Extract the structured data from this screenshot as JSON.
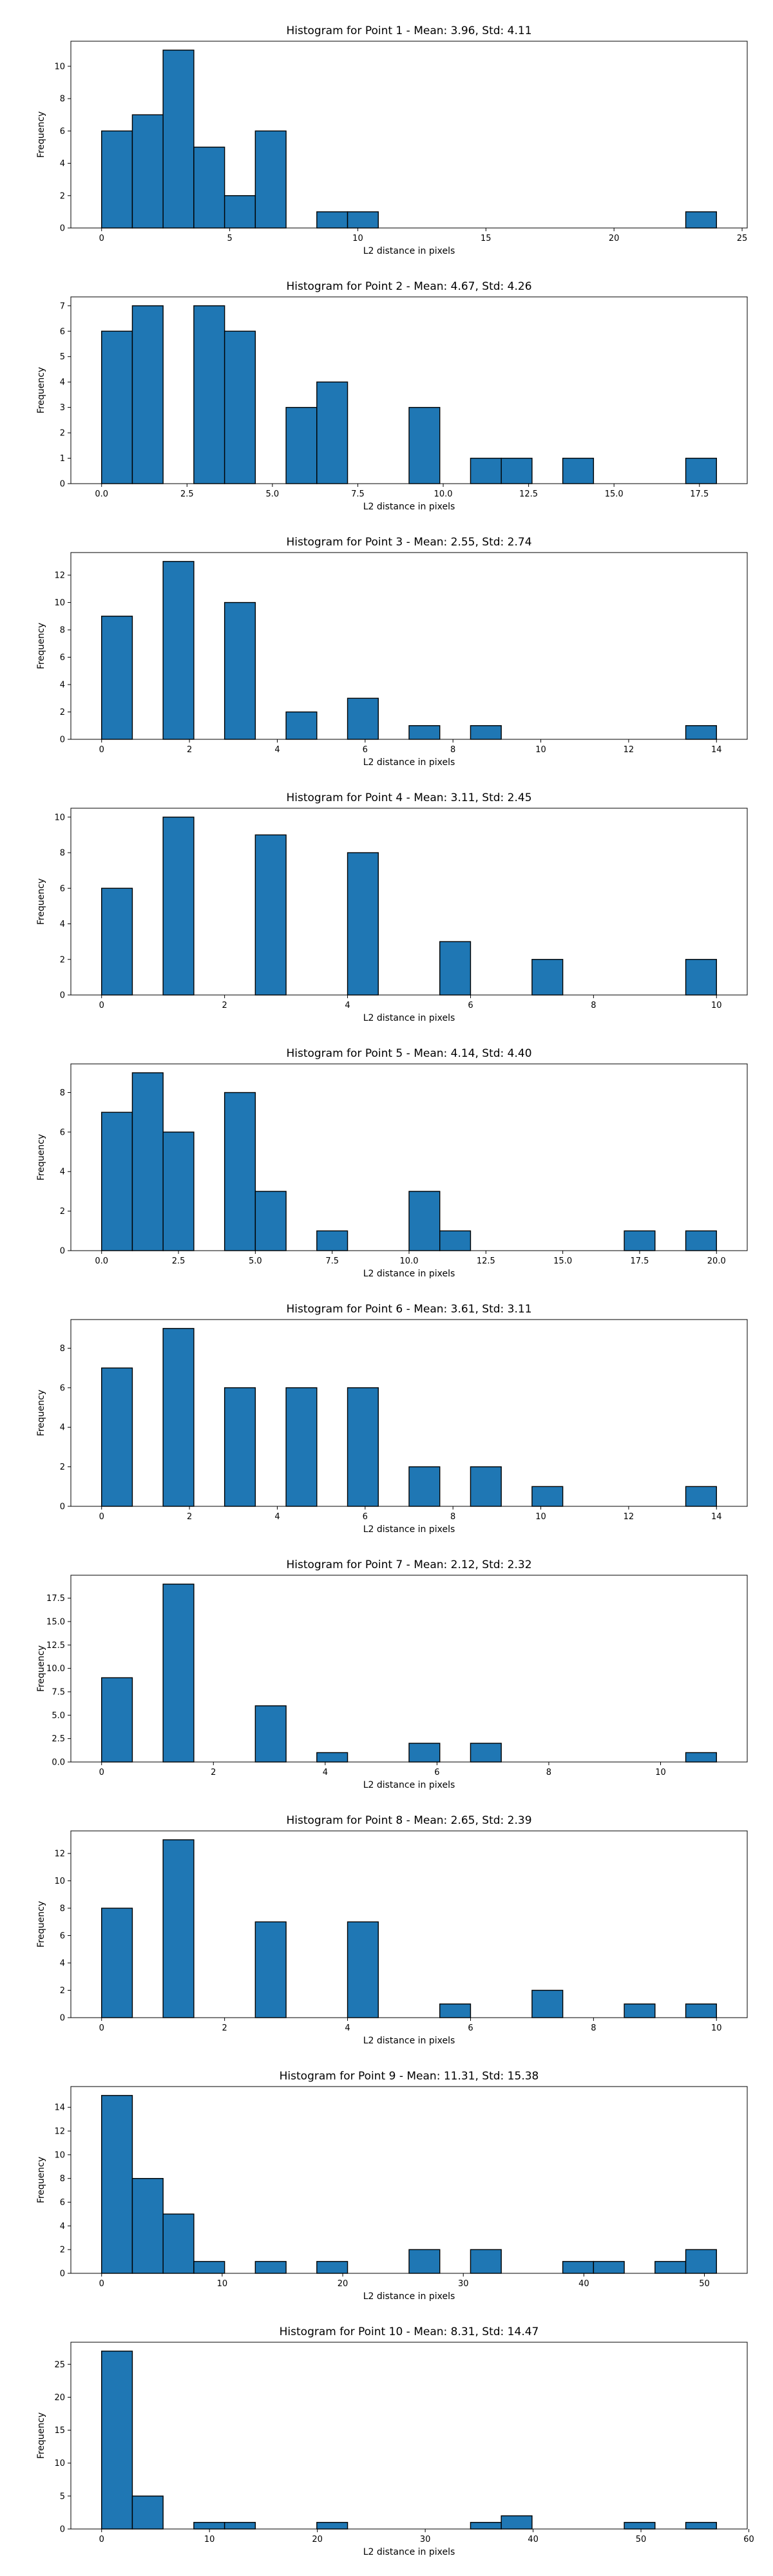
{
  "chart_data": [
    {
      "type": "bar",
      "title": "Histogram for Point 1 - Mean: 3.96, Std: 4.11",
      "xlabel": "L2 distance in pixels",
      "ylabel": "Frequency",
      "bins": [
        [
          0.0,
          1.2
        ],
        [
          1.2,
          2.4
        ],
        [
          2.4,
          3.6
        ],
        [
          3.6,
          4.8
        ],
        [
          4.8,
          6.0
        ],
        [
          6.0,
          7.2
        ],
        [
          8.4,
          9.6
        ],
        [
          9.6,
          10.8
        ],
        [
          22.8,
          24.0
        ]
      ],
      "counts": [
        6,
        7,
        11,
        5,
        2,
        6,
        1,
        1,
        1
      ],
      "xlim": [
        -1.2,
        25.2
      ],
      "ylim": [
        0,
        11.55
      ],
      "xticks": [
        0,
        5,
        10,
        15,
        20,
        25
      ],
      "xtick_labels": [
        "0",
        "5",
        "10",
        "15",
        "20",
        "25"
      ],
      "yticks": [
        0,
        2,
        4,
        6,
        8,
        10
      ],
      "ytick_labels": [
        "0",
        "2",
        "4",
        "6",
        "8",
        "10"
      ],
      "bar_color": "#1f77b4",
      "edge_color": "#000000"
    },
    {
      "type": "bar",
      "title": "Histogram for Point 2 - Mean: 4.67, Std: 4.26",
      "xlabel": "L2 distance in pixels",
      "ylabel": "Frequency",
      "bins": [
        [
          0.0,
          0.9
        ],
        [
          0.9,
          1.8
        ],
        [
          2.7,
          3.6
        ],
        [
          3.6,
          4.5
        ],
        [
          5.4,
          6.3
        ],
        [
          6.3,
          7.2
        ],
        [
          9.0,
          9.9
        ],
        [
          10.8,
          11.7
        ],
        [
          11.7,
          12.6
        ],
        [
          13.5,
          14.4
        ],
        [
          17.1,
          18.0
        ]
      ],
      "counts": [
        6,
        7,
        7,
        6,
        3,
        4,
        3,
        1,
        1,
        1,
        1
      ],
      "xlim": [
        -0.9,
        18.9
      ],
      "ylim": [
        0,
        7.35
      ],
      "xticks": [
        0,
        2.5,
        5,
        7.5,
        10,
        12.5,
        15,
        17.5
      ],
      "xtick_labels": [
        "0.0",
        "2.5",
        "5.0",
        "7.5",
        "10.0",
        "12.5",
        "15.0",
        "17.5"
      ],
      "yticks": [
        0,
        1,
        2,
        3,
        4,
        5,
        6,
        7
      ],
      "ytick_labels": [
        "0",
        "1",
        "2",
        "3",
        "4",
        "5",
        "6",
        "7"
      ],
      "bar_color": "#1f77b4",
      "edge_color": "#000000"
    },
    {
      "type": "bar",
      "title": "Histogram for Point 3 - Mean: 2.55, Std: 2.74",
      "xlabel": "L2 distance in pixels",
      "ylabel": "Frequency",
      "bins": [
        [
          0.0,
          0.7
        ],
        [
          1.4,
          2.1
        ],
        [
          2.8,
          3.5
        ],
        [
          4.2,
          4.9
        ],
        [
          5.6,
          6.3
        ],
        [
          7.0,
          7.7
        ],
        [
          8.4,
          9.1
        ],
        [
          13.3,
          14.0
        ]
      ],
      "counts": [
        9,
        13,
        10,
        2,
        3,
        1,
        1,
        1
      ],
      "xlim": [
        -0.7,
        14.7
      ],
      "ylim": [
        0,
        13.65
      ],
      "xticks": [
        0,
        2,
        4,
        6,
        8,
        10,
        12,
        14
      ],
      "xtick_labels": [
        "0",
        "2",
        "4",
        "6",
        "8",
        "10",
        "12",
        "14"
      ],
      "yticks": [
        0,
        2,
        4,
        6,
        8,
        10,
        12
      ],
      "ytick_labels": [
        "0",
        "2",
        "4",
        "6",
        "8",
        "10",
        "12"
      ],
      "bar_color": "#1f77b4",
      "edge_color": "#000000"
    },
    {
      "type": "bar",
      "title": "Histogram for Point 4 - Mean: 3.11, Std: 2.45",
      "xlabel": "L2 distance in pixels",
      "ylabel": "Frequency",
      "bins": [
        [
          0.0,
          0.5
        ],
        [
          1.0,
          1.5
        ],
        [
          2.5,
          3.0
        ],
        [
          4.0,
          4.5
        ],
        [
          5.5,
          6.0
        ],
        [
          7.0,
          7.5
        ],
        [
          9.5,
          10.0
        ]
      ],
      "counts": [
        6,
        10,
        9,
        8,
        3,
        2,
        2
      ],
      "xlim": [
        -0.5,
        10.5
      ],
      "ylim": [
        0,
        10.5
      ],
      "xticks": [
        0,
        2,
        4,
        6,
        8,
        10
      ],
      "xtick_labels": [
        "0",
        "2",
        "4",
        "6",
        "8",
        "10"
      ],
      "yticks": [
        0,
        2,
        4,
        6,
        8,
        10
      ],
      "ytick_labels": [
        "0",
        "2",
        "4",
        "6",
        "8",
        "10"
      ],
      "bar_color": "#1f77b4",
      "edge_color": "#000000"
    },
    {
      "type": "bar",
      "title": "Histogram for Point 5 - Mean: 4.14, Std: 4.40",
      "xlabel": "L2 distance in pixels",
      "ylabel": "Frequency",
      "bins": [
        [
          0.0,
          1.0
        ],
        [
          1.0,
          2.0
        ],
        [
          2.0,
          3.0
        ],
        [
          4.0,
          5.0
        ],
        [
          5.0,
          6.0
        ],
        [
          7.0,
          8.0
        ],
        [
          10.0,
          11.0
        ],
        [
          11.0,
          12.0
        ],
        [
          17.0,
          18.0
        ],
        [
          19.0,
          20.0
        ]
      ],
      "counts": [
        7,
        9,
        6,
        8,
        3,
        1,
        3,
        1,
        1,
        1
      ],
      "xlim": [
        -1.0,
        21.0
      ],
      "ylim": [
        0,
        9.45
      ],
      "xticks": [
        0,
        2.5,
        5,
        7.5,
        10,
        12.5,
        15,
        17.5,
        20
      ],
      "xtick_labels": [
        "0.0",
        "2.5",
        "5.0",
        "7.5",
        "10.0",
        "12.5",
        "15.0",
        "17.5",
        "20.0"
      ],
      "yticks": [
        0,
        2,
        4,
        6,
        8
      ],
      "ytick_labels": [
        "0",
        "2",
        "4",
        "6",
        "8"
      ],
      "bar_color": "#1f77b4",
      "edge_color": "#000000"
    },
    {
      "type": "bar",
      "title": "Histogram for Point 6 - Mean: 3.61, Std: 3.11",
      "xlabel": "L2 distance in pixels",
      "ylabel": "Frequency",
      "bins": [
        [
          0.0,
          0.7
        ],
        [
          1.4,
          2.1
        ],
        [
          2.8,
          3.5
        ],
        [
          4.2,
          4.9
        ],
        [
          5.6,
          6.3
        ],
        [
          7.0,
          7.7
        ],
        [
          8.4,
          9.1
        ],
        [
          9.8,
          10.5
        ],
        [
          13.3,
          14.0
        ]
      ],
      "counts": [
        7,
        9,
        6,
        6,
        6,
        2,
        2,
        1,
        1
      ],
      "xlim": [
        -0.7,
        14.7
      ],
      "ylim": [
        0,
        9.45
      ],
      "xticks": [
        0,
        2,
        4,
        6,
        8,
        10,
        12,
        14
      ],
      "xtick_labels": [
        "0",
        "2",
        "4",
        "6",
        "8",
        "10",
        "12",
        "14"
      ],
      "yticks": [
        0,
        2,
        4,
        6,
        8
      ],
      "ytick_labels": [
        "0",
        "2",
        "4",
        "6",
        "8"
      ],
      "bar_color": "#1f77b4",
      "edge_color": "#000000"
    },
    {
      "type": "bar",
      "title": "Histogram for Point 7 - Mean: 2.12, Std: 2.32",
      "xlabel": "L2 distance in pixels",
      "ylabel": "Frequency",
      "bins": [
        [
          0.0,
          0.55
        ],
        [
          1.1,
          1.65
        ],
        [
          2.75,
          3.3
        ],
        [
          3.85,
          4.4
        ],
        [
          5.5,
          6.05
        ],
        [
          6.6,
          7.15
        ],
        [
          10.45,
          11.0
        ]
      ],
      "counts": [
        9,
        19,
        6,
        1,
        2,
        2,
        1
      ],
      "xlim": [
        -0.55,
        11.55
      ],
      "ylim": [
        0,
        19.95
      ],
      "xticks": [
        0,
        2,
        4,
        6,
        8,
        10
      ],
      "xtick_labels": [
        "0",
        "2",
        "4",
        "6",
        "8",
        "10"
      ],
      "yticks": [
        0,
        2.5,
        5,
        7.5,
        10,
        12.5,
        15,
        17.5
      ],
      "ytick_labels": [
        "0.0",
        "2.5",
        "5.0",
        "7.5",
        "10.0",
        "12.5",
        "15.0",
        "17.5"
      ],
      "bar_color": "#1f77b4",
      "edge_color": "#000000"
    },
    {
      "type": "bar",
      "title": "Histogram for Point 8 - Mean: 2.65, Std: 2.39",
      "xlabel": "L2 distance in pixels",
      "ylabel": "Frequency",
      "bins": [
        [
          0.0,
          0.5
        ],
        [
          1.0,
          1.5
        ],
        [
          2.5,
          3.0
        ],
        [
          4.0,
          4.5
        ],
        [
          5.5,
          6.0
        ],
        [
          7.0,
          7.5
        ],
        [
          8.5,
          9.0
        ],
        [
          9.5,
          10.0
        ]
      ],
      "counts": [
        8,
        13,
        7,
        7,
        1,
        2,
        1,
        1
      ],
      "xlim": [
        -0.5,
        10.5
      ],
      "ylim": [
        0,
        13.65
      ],
      "xticks": [
        0,
        2,
        4,
        6,
        8,
        10
      ],
      "xtick_labels": [
        "0",
        "2",
        "4",
        "6",
        "8",
        "10"
      ],
      "yticks": [
        0,
        2,
        4,
        6,
        8,
        10,
        12
      ],
      "ytick_labels": [
        "0",
        "2",
        "4",
        "6",
        "8",
        "10",
        "12"
      ],
      "bar_color": "#1f77b4",
      "edge_color": "#000000"
    },
    {
      "type": "bar",
      "title": "Histogram for Point 9 - Mean: 11.31, Std: 15.38",
      "xlabel": "L2 distance in pixels",
      "ylabel": "Frequency",
      "bins": [
        [
          0.0,
          2.55
        ],
        [
          2.55,
          5.1
        ],
        [
          5.1,
          7.65
        ],
        [
          7.65,
          10.2
        ],
        [
          12.75,
          15.3
        ],
        [
          17.85,
          20.4
        ],
        [
          25.5,
          28.05
        ],
        [
          30.6,
          33.15
        ],
        [
          38.25,
          40.8
        ],
        [
          40.8,
          43.35
        ],
        [
          45.9,
          48.45
        ],
        [
          48.45,
          51.0
        ]
      ],
      "counts": [
        15,
        8,
        5,
        1,
        1,
        1,
        2,
        2,
        1,
        1,
        1,
        2
      ],
      "xlim": [
        -2.55,
        53.55
      ],
      "ylim": [
        0,
        15.75
      ],
      "xticks": [
        0,
        10,
        20,
        30,
        40,
        50
      ],
      "xtick_labels": [
        "0",
        "10",
        "20",
        "30",
        "40",
        "50"
      ],
      "yticks": [
        0,
        2,
        4,
        6,
        8,
        10,
        12,
        14
      ],
      "ytick_labels": [
        "0",
        "2",
        "4",
        "6",
        "8",
        "10",
        "12",
        "14"
      ],
      "bar_color": "#1f77b4",
      "edge_color": "#000000"
    },
    {
      "type": "bar",
      "title": "Histogram for Point 10 - Mean: 8.31, Std: 14.47",
      "xlabel": "L2 distance in pixels",
      "ylabel": "Frequency",
      "bins": [
        [
          0.0,
          2.85
        ],
        [
          2.85,
          5.7
        ],
        [
          8.55,
          11.4
        ],
        [
          11.4,
          14.25
        ],
        [
          19.95,
          22.8
        ],
        [
          34.2,
          37.05
        ],
        [
          37.05,
          39.9
        ],
        [
          48.45,
          51.3
        ],
        [
          54.15,
          57.0
        ]
      ],
      "counts": [
        27,
        5,
        1,
        1,
        1,
        1,
        2,
        1,
        1
      ],
      "xlim": [
        -2.85,
        59.85
      ],
      "ylim": [
        0,
        28.35
      ],
      "xticks": [
        0,
        10,
        20,
        30,
        40,
        50,
        60
      ],
      "xtick_labels": [
        "0",
        "10",
        "20",
        "30",
        "40",
        "50",
        "60"
      ],
      "yticks": [
        0,
        5,
        10,
        15,
        20,
        25
      ],
      "ytick_labels": [
        "0",
        "5",
        "10",
        "15",
        "20",
        "25"
      ],
      "bar_color": "#1f77b4",
      "edge_color": "#000000"
    }
  ]
}
